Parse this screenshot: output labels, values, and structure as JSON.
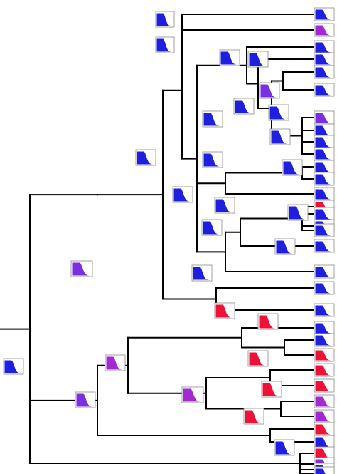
{
  "colors": {
    "blue": "#1f1fe0",
    "violet": "#7a2fe0",
    "purple": "#a22ad0",
    "red": "#ef1238",
    "branch": "#000000",
    "icon_border": "#8a8a8a"
  },
  "tips": [
    "blue",
    "purple",
    "blue",
    "blue",
    "blue",
    "blue",
    "violet",
    "blue",
    "blue",
    "blue",
    "blue",
    "blue",
    "blue",
    "red",
    "blue",
    "blue",
    "blue",
    "blue",
    "blue",
    "blue",
    "blue",
    "blue",
    "blue",
    "red",
    "red",
    "red",
    "purple",
    "purple",
    "red",
    "blue",
    "red",
    "violet",
    "blue",
    "blue"
  ],
  "nodes": [
    "blue",
    "blue",
    "blue",
    "blue",
    "blue",
    "violet",
    "blue",
    "blue",
    "blue",
    "blue",
    "blue",
    "blue",
    "blue",
    "blue",
    "blue",
    "blue",
    "blue",
    "blue",
    "blue",
    "violet",
    "red",
    "red",
    "red",
    "purple",
    "red",
    "red",
    "purple",
    "violet",
    "blue"
  ]
}
